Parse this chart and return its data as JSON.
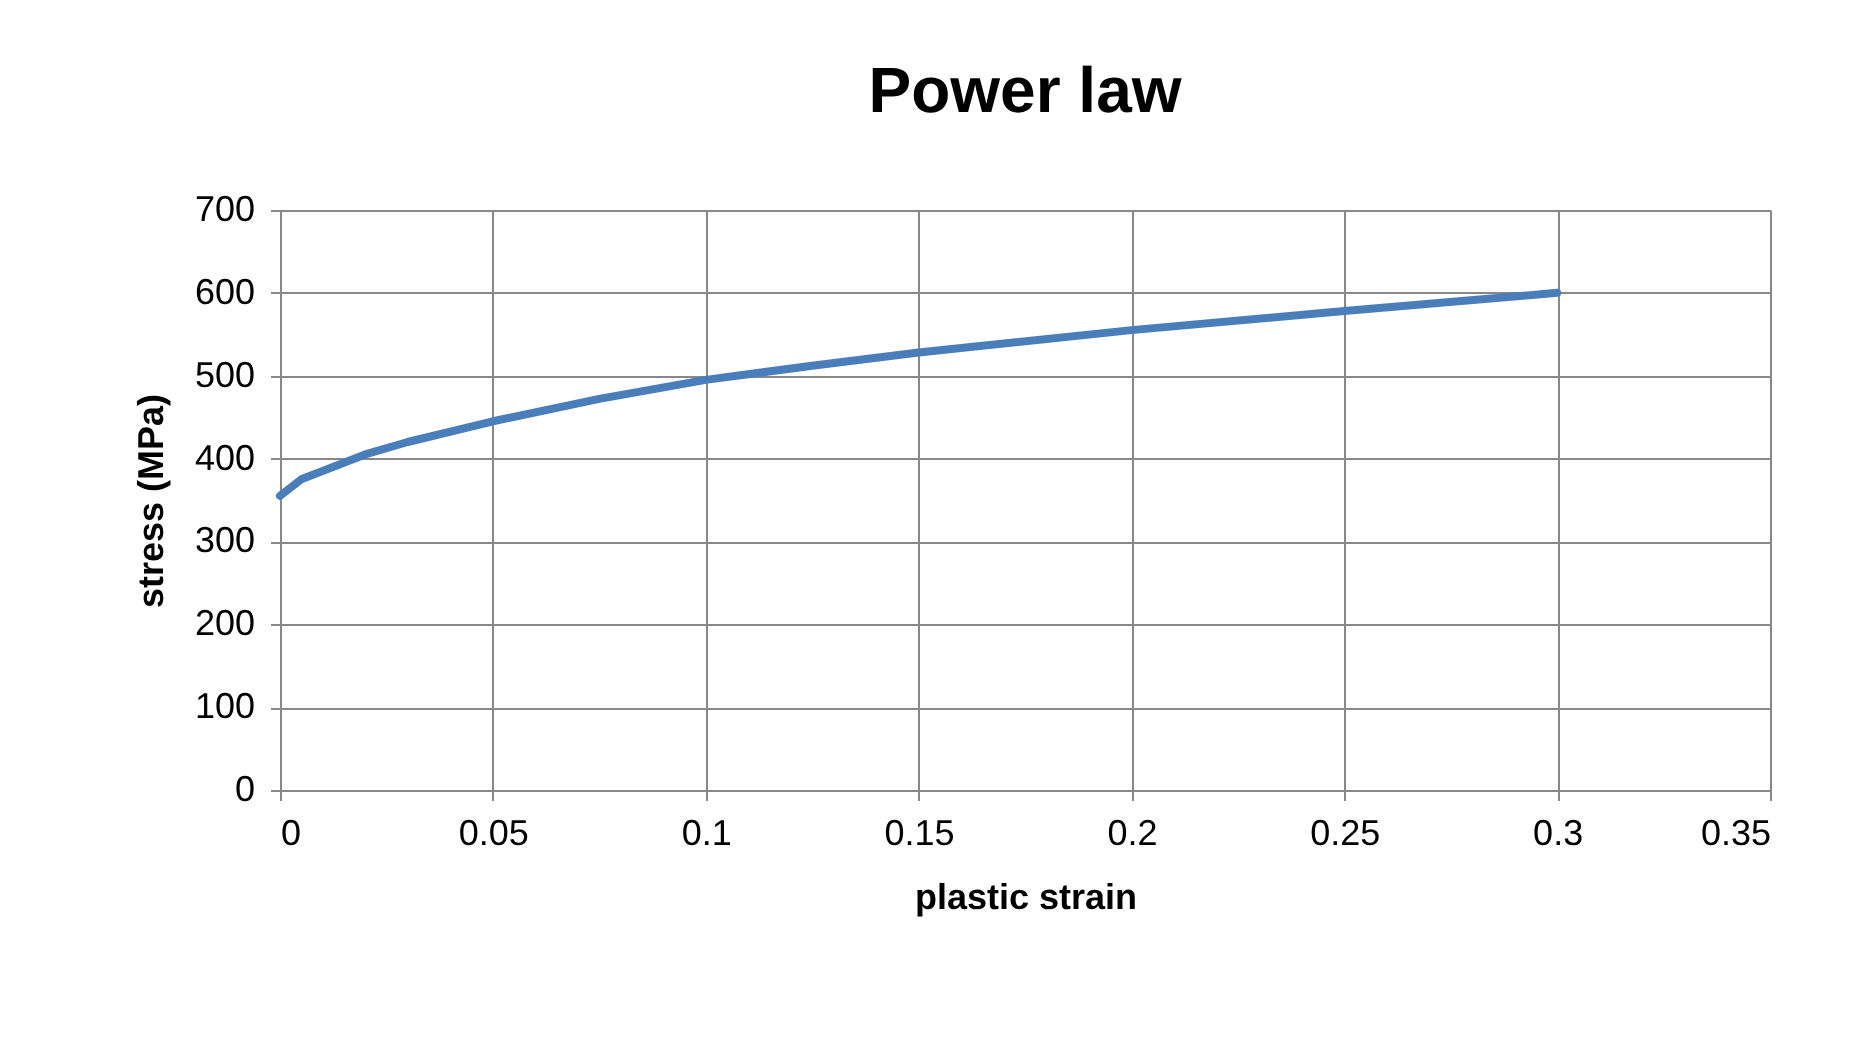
{
  "chart_data": {
    "type": "line",
    "title": "Power law",
    "xlabel": "plastic strain",
    "ylabel": "stress (MPa)",
    "x": [
      0,
      0.005,
      0.01,
      0.02,
      0.03,
      0.05,
      0.075,
      0.1,
      0.125,
      0.15,
      0.2,
      0.25,
      0.3
    ],
    "series": [
      {
        "color": "#4a7ebb",
        "values": [
          355,
          375,
          385,
          405,
          420,
          445,
          472,
          495,
          512,
          528,
          555,
          578,
          600
        ]
      }
    ],
    "xlim": [
      0,
      0.35
    ],
    "xticks": [
      0,
      0.05,
      0.1,
      0.15,
      0.2,
      0.25,
      0.3,
      0.35
    ],
    "ylim": [
      0,
      700
    ],
    "yticks": [
      0,
      100,
      200,
      300,
      400,
      500,
      600,
      700
    ],
    "grid": true,
    "marker": "none",
    "line_style": "solid"
  }
}
